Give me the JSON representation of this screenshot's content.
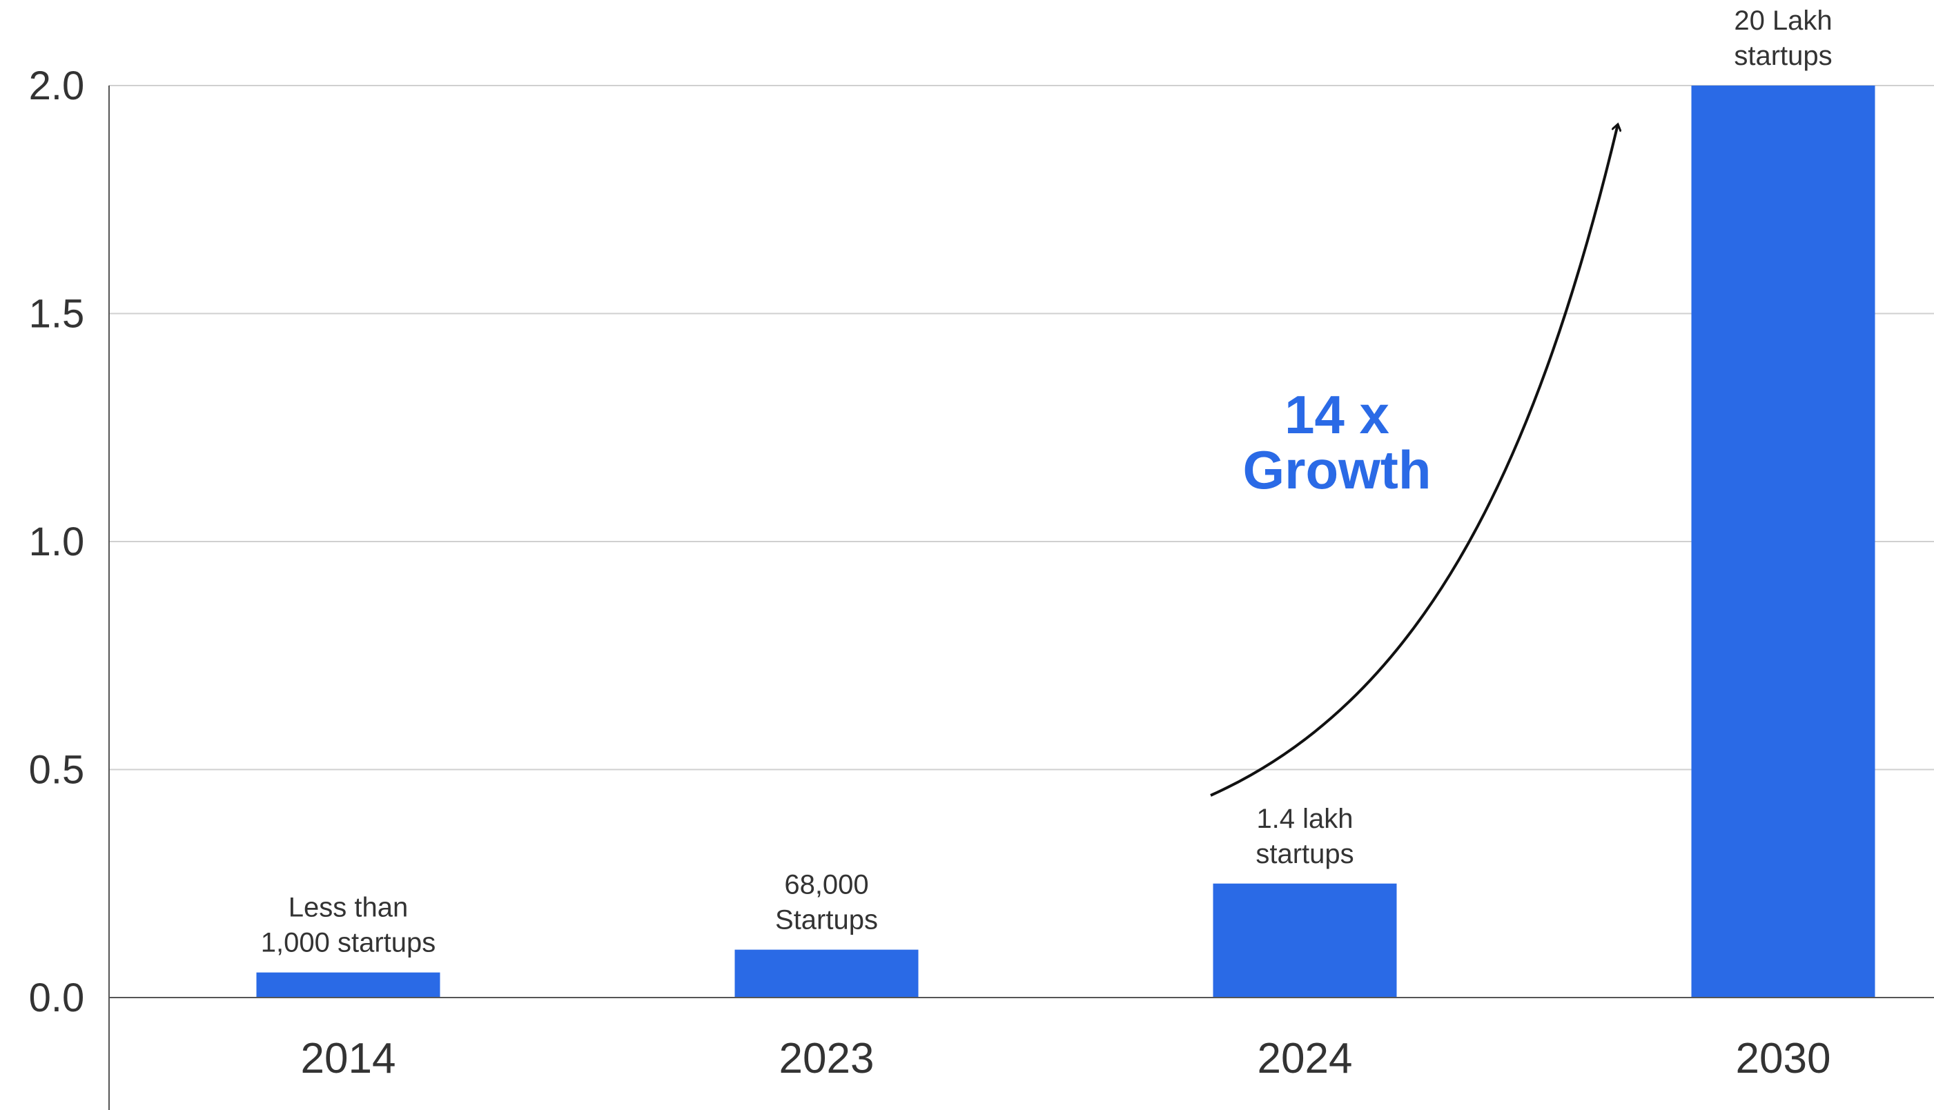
{
  "chart_data": {
    "type": "bar",
    "categories": [
      "2014",
      "2023",
      "2024",
      "2030"
    ],
    "values": [
      0.055,
      0.105,
      0.25,
      2.0
    ],
    "data_labels": [
      [
        "Less than",
        "1,000 startups"
      ],
      [
        "68,000",
        "Startups"
      ],
      [
        "1.4 lakh",
        "startups"
      ],
      [
        "20 Lakh",
        "startups"
      ]
    ],
    "ylim": [
      0,
      2.0
    ],
    "yticks": [
      "0.0",
      "0.5",
      "1.0",
      "1.5",
      "2.0"
    ],
    "grid": true,
    "title": "",
    "xlabel": "",
    "ylabel": "",
    "annotation": {
      "lines": [
        "14 x",
        "Growth"
      ],
      "color": "#2A6AE6"
    },
    "colors": {
      "bar": "#2A6AE6",
      "grid": "#D0D0D0",
      "axis": "#555555",
      "text": "#333333"
    }
  }
}
